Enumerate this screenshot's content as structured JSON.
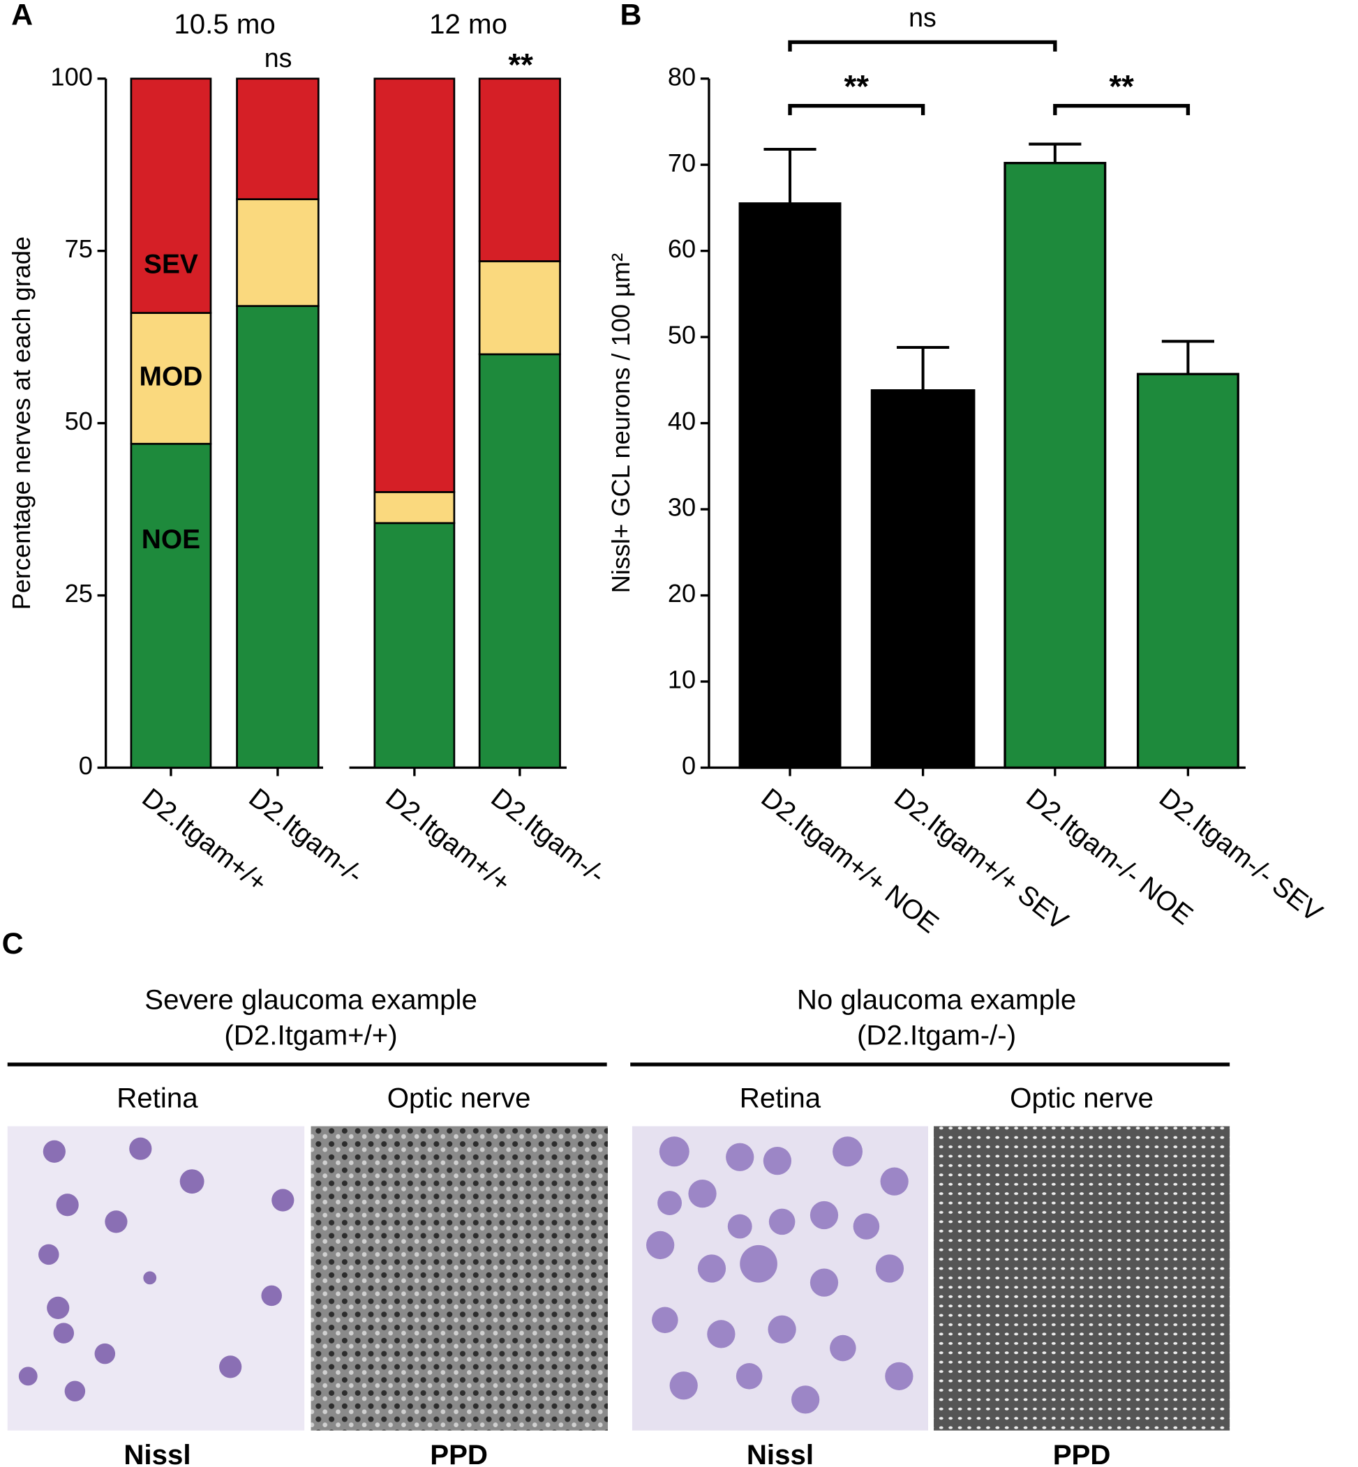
{
  "chart_data": [
    {
      "type": "stacked_bar",
      "label": "A",
      "ylabel": "Percentage nerves at each grade",
      "groups": [
        "10.5 mo",
        "12 mo"
      ],
      "annotations": [
        "ns",
        "**"
      ],
      "categories": [
        "D2.Itgam+/+",
        "D2.Itgam-/-",
        "D2.Itgam+/+",
        "D2.Itgam-/-"
      ],
      "series": [
        {
          "name": "NOE",
          "color": "#1e8a3c",
          "values": [
            47,
            67,
            35.5,
            60
          ]
        },
        {
          "name": "MOD",
          "color": "#fad97e",
          "values": [
            19,
            15.5,
            4.5,
            13.5
          ]
        },
        {
          "name": "SEV",
          "color": "#d51f26",
          "values": [
            34,
            17.5,
            60,
            26.5
          ]
        }
      ],
      "ylim": [
        0,
        100
      ],
      "yticks": [
        0,
        25,
        50,
        75,
        100
      ]
    },
    {
      "type": "bar",
      "label": "B",
      "ylabel": "Nissl+ GCL neurons / 100 µm²",
      "annotations": [
        "ns",
        "**",
        "**"
      ],
      "categories": [
        "D2.Itgam+/+ NOE",
        "D2.Itgam+/+ SEV",
        "D2.Itgam-/- NOE",
        "D2.Itgam-/- SEV"
      ],
      "values": [
        65.5,
        43.8,
        70.2,
        45.7
      ],
      "errors": [
        6.3,
        5,
        2.2,
        3.8
      ],
      "colors": [
        "#000000",
        "#000000",
        "#1e8a3c",
        "#1e8a3c"
      ],
      "ylim": [
        0,
        80
      ],
      "yticks": [
        0,
        10,
        20,
        30,
        40,
        50,
        60,
        70,
        80
      ]
    }
  ],
  "panel_c": {
    "label": "C",
    "examples": [
      {
        "title": "Severe glaucoma example",
        "subtitle": "(D2.Itgam+/+)",
        "columns": [
          "Retina",
          "Optic nerve"
        ],
        "stains": [
          "Nissl",
          "PPD"
        ]
      },
      {
        "title": "No glaucoma example",
        "subtitle": "(D2.Itgam-/-)",
        "columns": [
          "Retina",
          "Optic nerve"
        ],
        "stains": [
          "Nissl",
          "PPD"
        ]
      }
    ]
  }
}
